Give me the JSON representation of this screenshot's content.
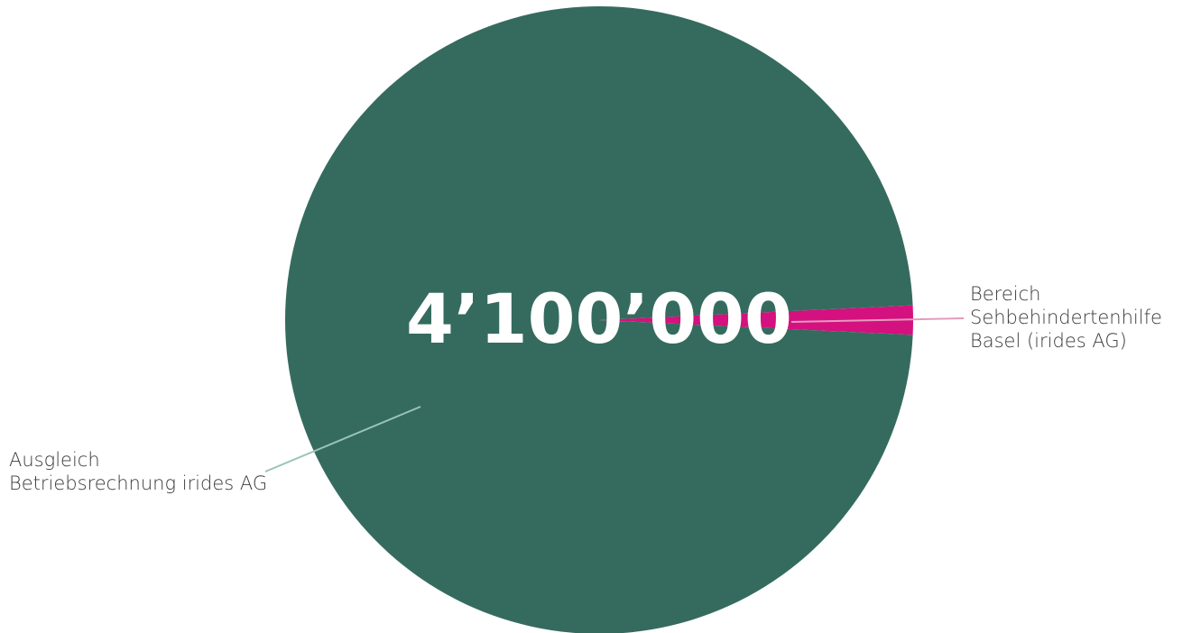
{
  "chart_data": {
    "type": "pie",
    "title": "",
    "center_label": "4’100’000",
    "slices": [
      {
        "label_lines": [
          "Bereich",
          "Sehbehindertenhilfe",
          "Basel (irides AG)"
        ],
        "value": 1.5,
        "color": "#d4117f",
        "leader_color": "#e39bbf"
      },
      {
        "label_lines": [
          "Ausgleich",
          "Betriebsrechnung irides AG"
        ],
        "value": 98.5,
        "color": "#356b5e",
        "leader_color": "#9bc4b9"
      }
    ],
    "legend": "none",
    "grid": false
  }
}
